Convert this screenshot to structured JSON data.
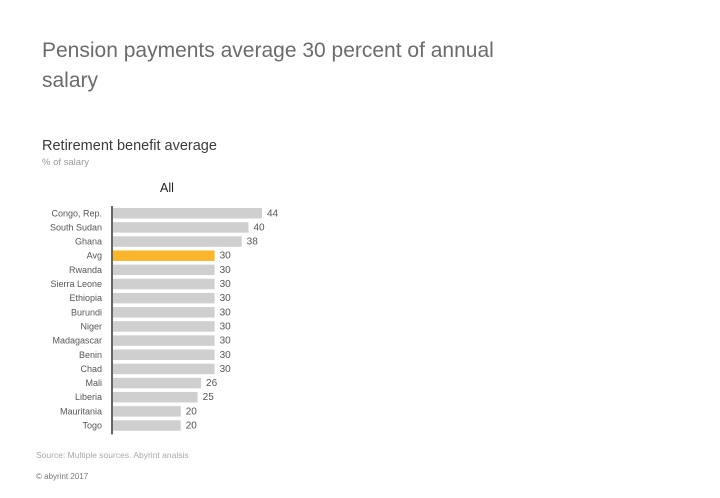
{
  "headline": "Pension payments average 30 percent of annual salary",
  "chart_data": {
    "type": "bar",
    "orientation": "horizontal",
    "title": "Retirement benefit average",
    "subtitle": "% of salary",
    "panel_label": "All",
    "categories": [
      "Congo, Rep.",
      "South Sudan",
      "Ghana",
      "Avg",
      "Rwanda",
      "Sierra Leone",
      "Ethiopia",
      "Burundi",
      "Niger",
      "Madagascar",
      "Benin",
      "Chad",
      "Mali",
      "Liberia",
      "Mauritania",
      "Togo"
    ],
    "values": [
      44,
      40,
      38,
      30,
      30,
      30,
      30,
      30,
      30,
      30,
      30,
      30,
      26,
      25,
      20,
      20
    ],
    "highlight_category": "Avg",
    "xlim": [
      0,
      44
    ],
    "bar_color": "#cfcfcf",
    "highlight_color": "#f9b52c",
    "data_labels": true,
    "grid": false,
    "legend": "none"
  },
  "source": "Source: Multiple sources. Abyrint analsis",
  "copyright": "© abyrint 2017"
}
